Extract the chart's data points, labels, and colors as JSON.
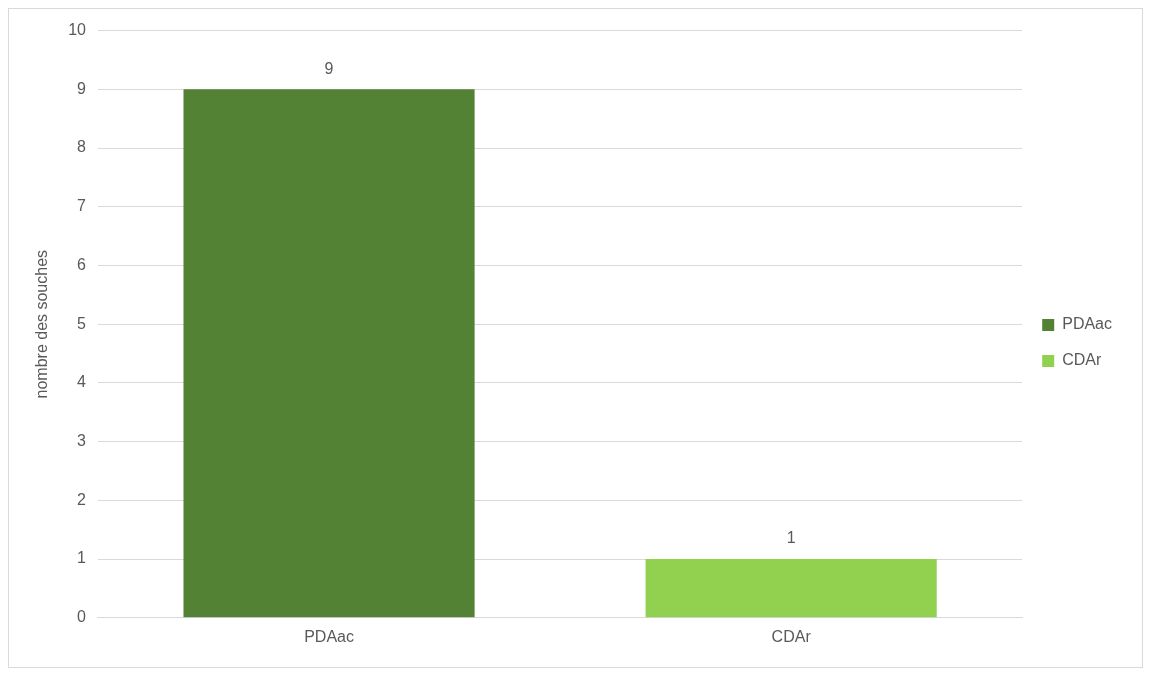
{
  "chart_data": {
    "type": "bar",
    "ylabel": "nombre des souches",
    "categories": [
      "PDAac",
      "CDAr"
    ],
    "series": [
      {
        "name": "PDAac",
        "color": "#548235",
        "values": [
          9,
          null
        ]
      },
      {
        "name": "CDAr",
        "color": "#92d050",
        "values": [
          null,
          1
        ]
      }
    ],
    "ylim": [
      0,
      10
    ],
    "yticks": [
      0,
      1,
      2,
      3,
      4,
      5,
      6,
      7,
      8,
      9,
      10
    ],
    "grid": "y",
    "legend": "right",
    "data_labels": true
  }
}
